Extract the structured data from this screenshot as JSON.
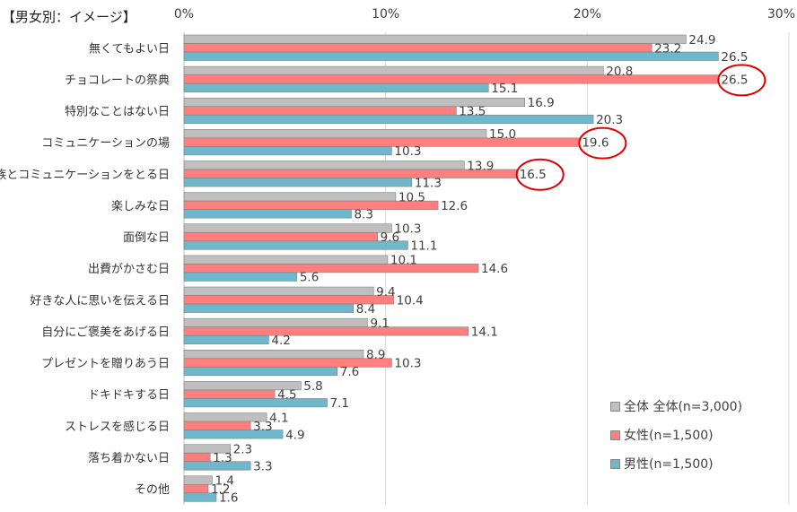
{
  "chart_data": {
    "type": "bar",
    "orientation": "horizontal",
    "title": "【男女別：イメージ】",
    "xlim": [
      0,
      30
    ],
    "ticks": [
      "0%",
      "10%",
      "20%",
      "30%"
    ],
    "tick_values": [
      0,
      10,
      20,
      30
    ],
    "grid": true,
    "legend_position": "bottom-right",
    "categories": [
      "無くてもよい日",
      "チョコレートの祭典",
      "特別なことはない日",
      "コミュニケーションの場",
      "家族とコミュニケーションをとる日",
      "楽しみな日",
      "面倒な日",
      "出費がかさむ日",
      "好きな人に思いを伝える日",
      "自分にご褒美をあげる日",
      "プレゼントを贈りあう日",
      "ドキドキする日",
      "ストレスを感じる日",
      "落ち着かない日",
      "その他"
    ],
    "series": [
      {
        "name": "全体 全体(n=3,000)",
        "color": "#bfbfbf",
        "values": [
          24.9,
          20.8,
          16.9,
          15.0,
          13.9,
          10.5,
          10.3,
          10.1,
          9.4,
          9.1,
          8.9,
          5.8,
          4.1,
          2.3,
          1.4
        ]
      },
      {
        "name": "女性(n=1,500)",
        "color": "#ff7f7f",
        "values": [
          23.2,
          26.5,
          13.5,
          19.6,
          16.5,
          12.6,
          9.6,
          14.6,
          10.4,
          14.1,
          10.3,
          4.5,
          3.3,
          1.3,
          1.2
        ]
      },
      {
        "name": "男性(n=1,500)",
        "color": "#6fb7ca",
        "values": [
          26.5,
          15.1,
          20.3,
          10.3,
          11.3,
          8.3,
          11.1,
          5.6,
          8.4,
          4.2,
          7.6,
          7.1,
          4.9,
          3.3,
          1.6
        ]
      }
    ],
    "highlights": [
      {
        "category": "チョコレートの祭典",
        "series": "女性(n=1,500)",
        "value": 26.5
      },
      {
        "category": "コミュニケーションの場",
        "series": "女性(n=1,500)",
        "value": 19.6
      },
      {
        "category": "家族とコミュニケーションをとる日",
        "series": "女性(n=1,500)",
        "value": 16.5
      }
    ]
  }
}
